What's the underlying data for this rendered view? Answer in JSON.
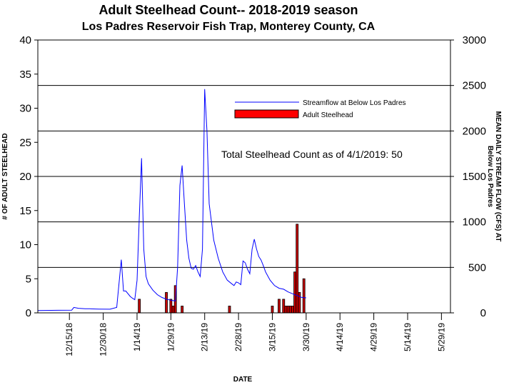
{
  "chart_data": {
    "type": "bar",
    "title": "Adult Steelhead Count-- 2018-2019 season",
    "subtitle": "Los Padres Reservoir Fish Trap, Monterey County, CA",
    "xlabel": "DATE",
    "ylabel_left": "# OF ADULT STEELHEAD",
    "ylabel_right_line1": "MEAN DAILY STREAM FLOW (CFS) AT",
    "ylabel_right_line2": "Below Los Padres",
    "annotation": "Total Steelhead Count as of 4/1/2019: 50",
    "legend": [
      {
        "name": "Streamflow at Below Los Padres",
        "type": "line",
        "color": "#0000ff"
      },
      {
        "name": "Adult Steelhead",
        "type": "bar",
        "color": "#ff0000"
      }
    ],
    "left_axis": {
      "min": 0,
      "max": 40,
      "ticks": [
        "0",
        "5",
        "10",
        "15",
        "20",
        "25",
        "30",
        "35",
        "40"
      ]
    },
    "right_axis": {
      "min": 0,
      "max": 3000,
      "ticks": [
        "0",
        "500",
        "1000",
        "1500",
        "2000",
        "2500",
        "3000"
      ],
      "gridlines": true
    },
    "x_axis": {
      "start": "2018-12-01",
      "end": "2019-06-02",
      "tick_dates": [
        "2018-12-15",
        "2018-12-30",
        "2019-01-14",
        "2019-01-29",
        "2019-02-13",
        "2019-02-28",
        "2019-03-15",
        "2019-03-30",
        "2019-04-14",
        "2019-04-29",
        "2019-05-14",
        "2019-05-29"
      ],
      "tick_labels": [
        "12/15/18",
        "12/30/18",
        "1/14/19",
        "1/29/19",
        "2/13/19",
        "2/28/19",
        "3/15/19",
        "3/30/19",
        "4/14/19",
        "4/29/19",
        "5/14/19",
        "5/29/19"
      ]
    },
    "series": [
      {
        "name": "Adult Steelhead",
        "axis": "left",
        "type": "bar",
        "color": "#cc0000",
        "points": [
          {
            "date": "2019-01-15",
            "value": 2
          },
          {
            "date": "2019-01-27",
            "value": 3
          },
          {
            "date": "2019-01-29",
            "value": 2
          },
          {
            "date": "2019-01-30",
            "value": 1
          },
          {
            "date": "2019-01-31",
            "value": 4
          },
          {
            "date": "2019-02-03",
            "value": 1
          },
          {
            "date": "2019-02-24",
            "value": 1
          },
          {
            "date": "2019-03-15",
            "value": 1
          },
          {
            "date": "2019-03-18",
            "value": 2
          },
          {
            "date": "2019-03-20",
            "value": 2
          },
          {
            "date": "2019-03-21",
            "value": 1
          },
          {
            "date": "2019-03-22",
            "value": 1
          },
          {
            "date": "2019-03-23",
            "value": 1
          },
          {
            "date": "2019-03-24",
            "value": 1
          },
          {
            "date": "2019-03-25",
            "value": 6
          },
          {
            "date": "2019-03-26",
            "value": 13
          },
          {
            "date": "2019-03-27",
            "value": 3
          },
          {
            "date": "2019-03-29",
            "value": 5
          }
        ]
      },
      {
        "name": "Streamflow at Below Los Padres",
        "axis": "right",
        "type": "line",
        "color": "#0000ff",
        "points": [
          {
            "date": "2018-12-01",
            "value": 25
          },
          {
            "date": "2018-12-10",
            "value": 28
          },
          {
            "date": "2018-12-16",
            "value": 30
          },
          {
            "date": "2018-12-17",
            "value": 60
          },
          {
            "date": "2018-12-19",
            "value": 50
          },
          {
            "date": "2018-12-22",
            "value": 45
          },
          {
            "date": "2018-12-24",
            "value": 45
          },
          {
            "date": "2018-12-28",
            "value": 42
          },
          {
            "date": "2019-01-02",
            "value": 40
          },
          {
            "date": "2019-01-05",
            "value": 60
          },
          {
            "date": "2019-01-07",
            "value": 585
          },
          {
            "date": "2019-01-08",
            "value": 240
          },
          {
            "date": "2019-01-09",
            "value": 240
          },
          {
            "date": "2019-01-11",
            "value": 180
          },
          {
            "date": "2019-01-12",
            "value": 160
          },
          {
            "date": "2019-01-13",
            "value": 145
          },
          {
            "date": "2019-01-14",
            "value": 360
          },
          {
            "date": "2019-01-15",
            "value": 1050
          },
          {
            "date": "2019-01-16",
            "value": 1700
          },
          {
            "date": "2019-01-17",
            "value": 700
          },
          {
            "date": "2019-01-18",
            "value": 400
          },
          {
            "date": "2019-01-19",
            "value": 320
          },
          {
            "date": "2019-01-21",
            "value": 250
          },
          {
            "date": "2019-01-23",
            "value": 200
          },
          {
            "date": "2019-01-25",
            "value": 170
          },
          {
            "date": "2019-01-27",
            "value": 150
          },
          {
            "date": "2019-01-29",
            "value": 140
          },
          {
            "date": "2019-01-31",
            "value": 130
          },
          {
            "date": "2019-02-01",
            "value": 500
          },
          {
            "date": "2019-02-02",
            "value": 1400
          },
          {
            "date": "2019-02-03",
            "value": 1620
          },
          {
            "date": "2019-02-04",
            "value": 1200
          },
          {
            "date": "2019-02-05",
            "value": 800
          },
          {
            "date": "2019-02-06",
            "value": 600
          },
          {
            "date": "2019-02-07",
            "value": 490
          },
          {
            "date": "2019-02-08",
            "value": 480
          },
          {
            "date": "2019-02-09",
            "value": 520
          },
          {
            "date": "2019-02-10",
            "value": 450
          },
          {
            "date": "2019-02-11",
            "value": 400
          },
          {
            "date": "2019-02-12",
            "value": 700
          },
          {
            "date": "2019-02-13",
            "value": 2460
          },
          {
            "date": "2019-02-14",
            "value": 2000
          },
          {
            "date": "2019-02-15",
            "value": 1200
          },
          {
            "date": "2019-02-17",
            "value": 800
          },
          {
            "date": "2019-02-19",
            "value": 600
          },
          {
            "date": "2019-02-21",
            "value": 450
          },
          {
            "date": "2019-02-23",
            "value": 360
          },
          {
            "date": "2019-02-25",
            "value": 320
          },
          {
            "date": "2019-02-26",
            "value": 300
          },
          {
            "date": "2019-02-27",
            "value": 340
          },
          {
            "date": "2019-02-28",
            "value": 330
          },
          {
            "date": "2019-03-01",
            "value": 310
          },
          {
            "date": "2019-03-02",
            "value": 570
          },
          {
            "date": "2019-03-03",
            "value": 550
          },
          {
            "date": "2019-03-04",
            "value": 480
          },
          {
            "date": "2019-03-05",
            "value": 430
          },
          {
            "date": "2019-03-06",
            "value": 700
          },
          {
            "date": "2019-03-07",
            "value": 810
          },
          {
            "date": "2019-03-08",
            "value": 700
          },
          {
            "date": "2019-03-09",
            "value": 620
          },
          {
            "date": "2019-03-10",
            "value": 580
          },
          {
            "date": "2019-03-11",
            "value": 520
          },
          {
            "date": "2019-03-12",
            "value": 450
          },
          {
            "date": "2019-03-14",
            "value": 360
          },
          {
            "date": "2019-03-16",
            "value": 300
          },
          {
            "date": "2019-03-18",
            "value": 270
          },
          {
            "date": "2019-03-20",
            "value": 260
          },
          {
            "date": "2019-03-22",
            "value": 230
          },
          {
            "date": "2019-03-24",
            "value": 210
          },
          {
            "date": "2019-03-26",
            "value": 190
          },
          {
            "date": "2019-03-28",
            "value": 170
          },
          {
            "date": "2019-03-30",
            "value": 165
          }
        ]
      }
    ]
  }
}
